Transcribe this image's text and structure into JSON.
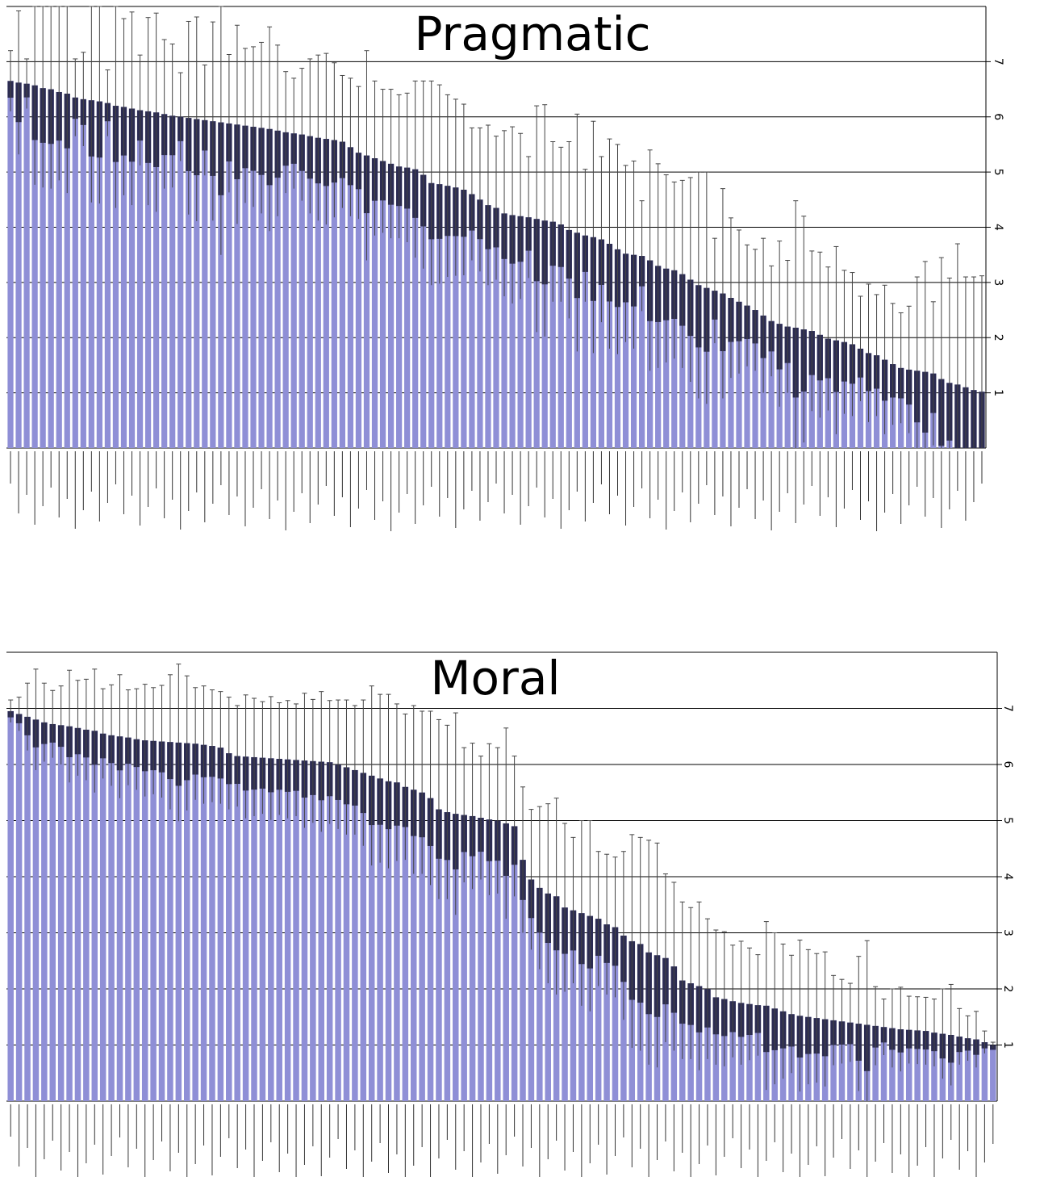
{
  "chart_data": [
    {
      "type": "bar",
      "title": "Pragmatic",
      "ylim": [
        0,
        8
      ],
      "yticks": [
        1,
        2,
        3,
        4,
        5,
        6,
        7
      ],
      "ytick_side": "right",
      "grid": true,
      "values": [
        6.65,
        6.62,
        6.6,
        6.57,
        6.52,
        6.5,
        6.45,
        6.42,
        6.35,
        6.32,
        6.3,
        6.28,
        6.25,
        6.2,
        6.18,
        6.15,
        6.12,
        6.1,
        6.08,
        6.05,
        6.02,
        6.0,
        5.98,
        5.96,
        5.94,
        5.92,
        5.9,
        5.88,
        5.86,
        5.84,
        5.82,
        5.8,
        5.78,
        5.75,
        5.72,
        5.7,
        5.68,
        5.65,
        5.62,
        5.6,
        5.58,
        5.55,
        5.45,
        5.35,
        5.3,
        5.25,
        5.2,
        5.15,
        5.1,
        5.08,
        5.05,
        4.95,
        4.8,
        4.78,
        4.75,
        4.72,
        4.68,
        4.6,
        4.5,
        4.4,
        4.35,
        4.25,
        4.22,
        4.2,
        4.18,
        4.15,
        4.12,
        4.1,
        4.05,
        3.95,
        3.9,
        3.85,
        3.82,
        3.78,
        3.7,
        3.6,
        3.52,
        3.5,
        3.48,
        3.4,
        3.3,
        3.25,
        3.22,
        3.15,
        3.05,
        2.95,
        2.9,
        2.85,
        2.8,
        2.72,
        2.65,
        2.58,
        2.5,
        2.4,
        2.3,
        2.25,
        2.2,
        2.18,
        2.15,
        2.12,
        2.05,
        1.98,
        1.95,
        1.92,
        1.88,
        1.8,
        1.72,
        1.68,
        1.6,
        1.52,
        1.45,
        1.42,
        1.4,
        1.38,
        1.35,
        1.25,
        1.18,
        1.15,
        1.1,
        1.05,
        1.02
      ],
      "errors": [
        0.55,
        1.3,
        0.45,
        1.8,
        1.8,
        1.8,
        1.6,
        1.8,
        0.7,
        0.85,
        1.85,
        1.85,
        0.6,
        1.85,
        1.6,
        1.75,
        1.0,
        1.7,
        1.8,
        1.35,
        1.3,
        0.8,
        1.75,
        1.85,
        1.0,
        1.8,
        2.4,
        1.25,
        1.8,
        1.4,
        1.45,
        1.55,
        1.85,
        1.55,
        1.1,
        1.0,
        1.2,
        1.4,
        1.5,
        1.55,
        1.4,
        1.2,
        1.25,
        1.2,
        1.9,
        1.4,
        1.3,
        1.35,
        1.3,
        1.35,
        1.6,
        1.7,
        1.85,
        1.8,
        1.65,
        1.6,
        1.55,
        1.2,
        1.3,
        1.45,
        1.3,
        1.5,
        1.6,
        1.5,
        1.1,
        2.05,
        2.1,
        1.45,
        1.4,
        1.6,
        2.15,
        1.2,
        2.1,
        1.5,
        1.9,
        1.9,
        1.6,
        1.7,
        1.0,
        2.0,
        1.85,
        1.7,
        1.6,
        1.7,
        1.85,
        2.05,
        2.1,
        0.95,
        1.9,
        1.45,
        1.3,
        1.1,
        1.1,
        1.4,
        1.0,
        1.5,
        1.2,
        2.3,
        2.05,
        1.45,
        1.5,
        1.3,
        1.7,
        1.3,
        1.3,
        0.95,
        1.25,
        1.1,
        1.35,
        1.1,
        1.0,
        1.15,
        1.7,
        2.0,
        1.3,
        2.2,
        1.9,
        2.55,
        2.0,
        2.05,
        2.1
      ]
    },
    {
      "type": "bar",
      "title": "Moral",
      "ylim": [
        0,
        8
      ],
      "yticks": [
        1,
        2,
        3,
        4,
        5,
        6,
        7
      ],
      "ytick_side": "right",
      "grid": true,
      "values": [
        6.95,
        6.9,
        6.85,
        6.8,
        6.75,
        6.72,
        6.7,
        6.68,
        6.65,
        6.62,
        6.6,
        6.55,
        6.52,
        6.5,
        6.48,
        6.45,
        6.43,
        6.42,
        6.41,
        6.4,
        6.39,
        6.38,
        6.37,
        6.35,
        6.33,
        6.3,
        6.2,
        6.15,
        6.14,
        6.13,
        6.12,
        6.11,
        6.1,
        6.09,
        6.08,
        6.07,
        6.06,
        6.05,
        6.04,
        6.0,
        5.95,
        5.9,
        5.85,
        5.8,
        5.75,
        5.7,
        5.68,
        5.6,
        5.55,
        5.5,
        5.4,
        5.2,
        5.15,
        5.12,
        5.1,
        5.08,
        5.05,
        5.02,
        5.0,
        4.95,
        4.9,
        4.3,
        3.95,
        3.8,
        3.7,
        3.65,
        3.45,
        3.4,
        3.35,
        3.3,
        3.25,
        3.15,
        3.1,
        2.95,
        2.85,
        2.8,
        2.65,
        2.6,
        2.55,
        2.4,
        2.15,
        2.1,
        2.05,
        2.0,
        1.85,
        1.82,
        1.78,
        1.75,
        1.73,
        1.71,
        1.7,
        1.65,
        1.6,
        1.55,
        1.52,
        1.5,
        1.48,
        1.46,
        1.44,
        1.42,
        1.4,
        1.38,
        1.36,
        1.34,
        1.32,
        1.3,
        1.28,
        1.27,
        1.26,
        1.25,
        1.22,
        1.2,
        1.18,
        1.15,
        1.12,
        1.1,
        1.05,
        1.0
      ],
      "errors": [
        0.2,
        0.3,
        0.6,
        0.9,
        0.7,
        0.6,
        0.7,
        1.0,
        0.85,
        0.9,
        1.1,
        0.8,
        0.9,
        1.1,
        0.85,
        0.9,
        1.0,
        0.95,
        1.0,
        1.2,
        1.4,
        1.2,
        1.0,
        1.05,
        1.0,
        1.0,
        1.0,
        0.9,
        1.1,
        1.05,
        1.0,
        1.1,
        1.0,
        1.05,
        1.0,
        1.2,
        1.1,
        1.25,
        1.1,
        1.15,
        1.2,
        1.15,
        1.3,
        1.6,
        1.5,
        1.55,
        1.4,
        1.3,
        1.5,
        1.45,
        1.55,
        1.6,
        1.55,
        1.8,
        1.2,
        1.3,
        1.1,
        1.35,
        1.3,
        1.7,
        1.25,
        1.3,
        1.25,
        1.45,
        1.6,
        1.75,
        1.5,
        1.3,
        1.65,
        1.7,
        1.2,
        1.25,
        1.25,
        1.5,
        1.9,
        1.9,
        2.0,
        2.0,
        1.5,
        1.5,
        1.4,
        1.35,
        1.5,
        1.25,
        1.2,
        1.2,
        1.0,
        1.1,
        1.0,
        0.9,
        1.5,
        1.35,
        1.2,
        1.05,
        1.35,
        1.2,
        1.15,
        1.2,
        0.8,
        0.75,
        0.7,
        1.2,
        1.5,
        0.7,
        0.5,
        0.7,
        0.75,
        0.6,
        0.6,
        0.6,
        0.6,
        0.8,
        0.9,
        0.5,
        0.4,
        0.5,
        0.2,
        0.05
      ]
    }
  ]
}
